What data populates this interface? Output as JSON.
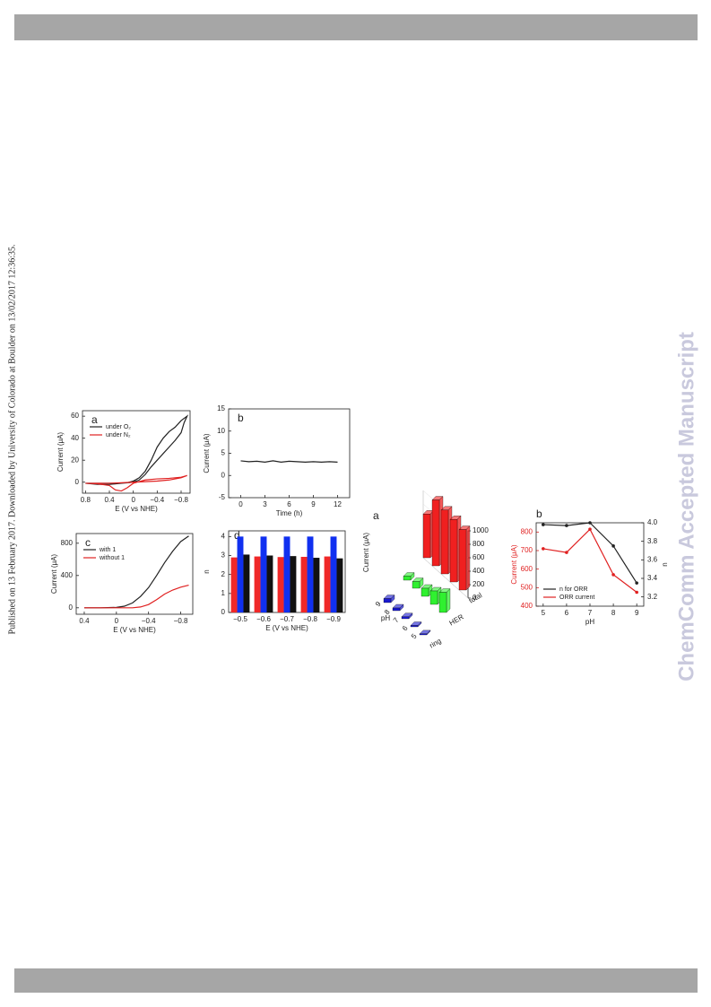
{
  "side_note": "Published on 13 February 2017. Downloaded by University of Colorado at Boulder on 13/02/2017 12:36:35.",
  "watermark": "ChemComm Accepted Manuscript",
  "chart_data": [
    {
      "type": "line",
      "label": "a",
      "x_label": "E (V vs NHE)",
      "y_label": "Current (μA)",
      "xlim": [
        0.85,
        -0.95
      ],
      "xticks": [
        0.8,
        0.4,
        0,
        {
          "value": -0.4,
          "label": "−0.4"
        },
        {
          "value": -0.8,
          "label": "−0.8"
        }
      ],
      "ylim": [
        -10,
        65
      ],
      "yticks": [
        0,
        20,
        40,
        60
      ],
      "legend": "upper left",
      "series": [
        {
          "name": "under O₂",
          "color": "#222222",
          "x": [
            0.8,
            0.6,
            0.4,
            0.2,
            0.1,
            0,
            -0.1,
            -0.2,
            -0.3,
            -0.4,
            -0.5,
            -0.6,
            -0.7,
            -0.8,
            -0.9,
            -0.85,
            -0.8,
            -0.7,
            -0.6,
            -0.5,
            -0.4,
            -0.3,
            -0.2,
            -0.1,
            0,
            0.2,
            0.4,
            0.6,
            0.8
          ],
          "values": [
            -1,
            -1,
            -1,
            -1,
            -0.5,
            1,
            4,
            10,
            20,
            32,
            40,
            46,
            50,
            56,
            60,
            54,
            45,
            38,
            32,
            26,
            20,
            14,
            7,
            2,
            0,
            -1,
            -2,
            -2,
            -1
          ]
        },
        {
          "name": "under N₂",
          "color": "#e02020",
          "x": [
            0.8,
            0.6,
            0.4,
            0.3,
            0.2,
            0.1,
            0,
            -0.2,
            -0.4,
            -0.6,
            -0.8,
            -0.9,
            -0.8,
            -0.6,
            -0.4,
            -0.2,
            0,
            0.2,
            0.4,
            0.6,
            0.8
          ],
          "values": [
            -1,
            -1.5,
            -3,
            -7,
            -8,
            -5,
            -1,
            2,
            3,
            3.5,
            4.5,
            6,
            4,
            2,
            1,
            0.5,
            0,
            -0.5,
            -1,
            -1,
            -1
          ]
        }
      ]
    },
    {
      "type": "line",
      "label": "b",
      "x_label": "Time (h)",
      "y_label": "Current (μA)",
      "xlim": [
        -1.5,
        13.5
      ],
      "xticks": [
        0,
        3,
        6,
        9,
        12
      ],
      "ylim": [
        -5,
        15
      ],
      "yticks": [
        -5,
        0,
        5,
        10,
        15
      ],
      "x": [
        0,
        1,
        2,
        3,
        4,
        5,
        6,
        7,
        8,
        9,
        10,
        11,
        12
      ],
      "series": [
        {
          "color": "#222222",
          "values": [
            3.3,
            3.1,
            3.2,
            3.0,
            3.3,
            3.0,
            3.2,
            3.1,
            3.0,
            3.1,
            3.0,
            3.1,
            3.0
          ]
        }
      ]
    },
    {
      "type": "line",
      "label": "c",
      "x_label": "E (V vs NHE)",
      "y_label": "Current (μA)",
      "xlim": [
        0.5,
        -0.95
      ],
      "xticks": [
        0.4,
        0,
        {
          "value": -0.4,
          "label": "−0.4"
        },
        {
          "value": -0.8,
          "label": "−0.8"
        }
      ],
      "ylim": [
        -80,
        920
      ],
      "yticks": [
        0,
        400,
        800
      ],
      "legend": "upper left",
      "x": [
        0.4,
        0.2,
        0,
        -0.1,
        -0.2,
        -0.3,
        -0.4,
        -0.5,
        -0.6,
        -0.7,
        -0.8,
        -0.9
      ],
      "series": [
        {
          "name": "with 1",
          "color": "#222222",
          "values": [
            0,
            0,
            5,
            20,
            60,
            140,
            250,
            400,
            560,
            700,
            820,
            890
          ]
        },
        {
          "name": "without 1",
          "color": "#e02020",
          "values": [
            0,
            0,
            0,
            0,
            0,
            10,
            40,
            100,
            170,
            220,
            255,
            280
          ]
        }
      ]
    },
    {
      "type": "bar",
      "label": "d",
      "x_label": "E (V vs NHE)",
      "y_label": "n",
      "categories": [
        "−0.5",
        "−0.6",
        "−0.7",
        "−0.8",
        "−0.9"
      ],
      "ylim": [
        0,
        4.3
      ],
      "yticks": [
        0,
        1,
        2,
        3,
        4
      ],
      "series": [
        {
          "color": "#f02828",
          "values": [
            2.9,
            2.95,
            2.92,
            2.93,
            2.95
          ]
        },
        {
          "color": "#1030f0",
          "values": [
            4,
            4,
            4,
            4,
            4
          ]
        },
        {
          "color": "#111111",
          "values": [
            3.05,
            3.0,
            2.97,
            2.88,
            2.85
          ]
        }
      ]
    },
    {
      "type": "bar3d",
      "label": "a",
      "x_label": "pH",
      "z_label": "Current (μA)",
      "categories": [
        "9",
        "8",
        "7",
        "6",
        "5"
      ],
      "zlim": [
        0,
        1000
      ],
      "zticks": [
        0,
        200,
        400,
        600,
        800,
        1000
      ],
      "series": [
        {
          "name": "ring",
          "color": "#1a1ad0",
          "values": [
            60,
            40,
            30,
            20,
            15
          ]
        },
        {
          "name": "HER",
          "color": "#30f030",
          "values": [
            60,
            100,
            120,
            200,
            300
          ]
        },
        {
          "name": "total",
          "color": "#f02020",
          "values": [
            650,
            980,
            950,
            930,
            900
          ]
        }
      ]
    },
    {
      "type": "line",
      "label": "b",
      "x_label": "pH",
      "y_label": "Current (μA)",
      "y2_label": "n",
      "y_axis_color": "#e02020",
      "xlim": [
        4.7,
        9.3
      ],
      "xticks": [
        5,
        6,
        7,
        8,
        9
      ],
      "ylim": [
        400,
        850
      ],
      "yticks": [
        400,
        500,
        600,
        700,
        800
      ],
      "y2lim": [
        3.1,
        4.0
      ],
      "y2ticks": [
        3.2,
        3.4,
        3.6,
        3.8,
        {
          "value": 4,
          "label": "4.0"
        }
      ],
      "legend": "lower left",
      "markers": true,
      "x": [
        5,
        6,
        7,
        8,
        9
      ],
      "series": [
        {
          "name": "n for ORR",
          "color": "#222222",
          "axis": "y2",
          "values": [
            3.98,
            3.97,
            4.0,
            3.75,
            3.35
          ]
        },
        {
          "name": "ORR current",
          "color": "#e02020",
          "values": [
            710,
            690,
            815,
            570,
            475
          ]
        }
      ]
    }
  ]
}
